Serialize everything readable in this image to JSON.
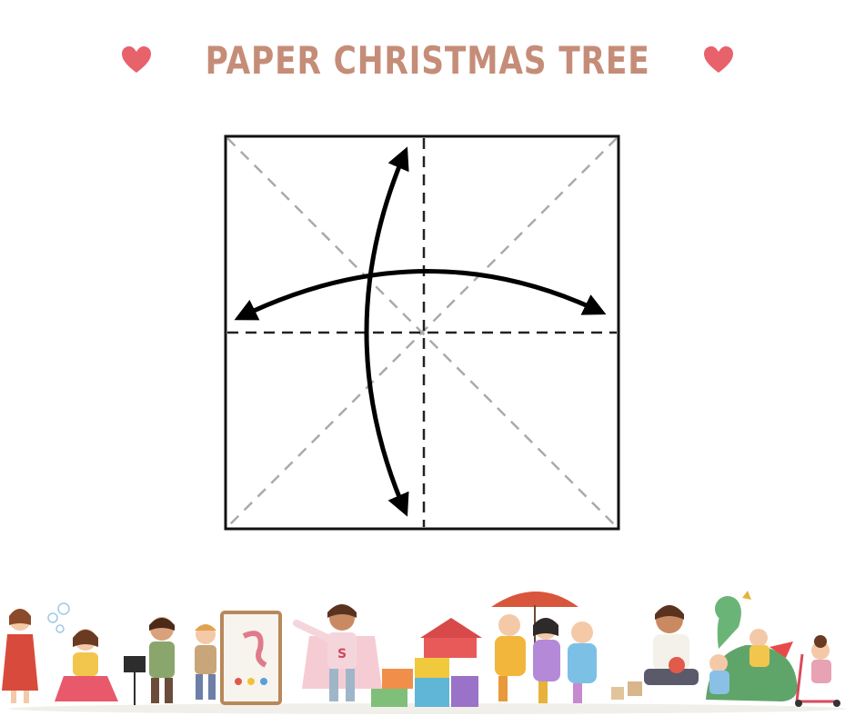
{
  "header": {
    "title": "PAPER CHRISTMAS TREE",
    "left_icon": "heart-icon",
    "right_icon": "heart-icon",
    "heart_color": "#e8626b",
    "title_color": "#c58d78"
  },
  "diagram": {
    "subject": "origami square base with valley folds (dashed) and diagonal mountain folds (grey dashed), arrows indicating fold-and-unfold in both directions",
    "fold_line_color": "#222222",
    "diagonal_line_color": "#aaaaaa"
  },
  "footer": {
    "illustration": "watercolor children playing"
  }
}
